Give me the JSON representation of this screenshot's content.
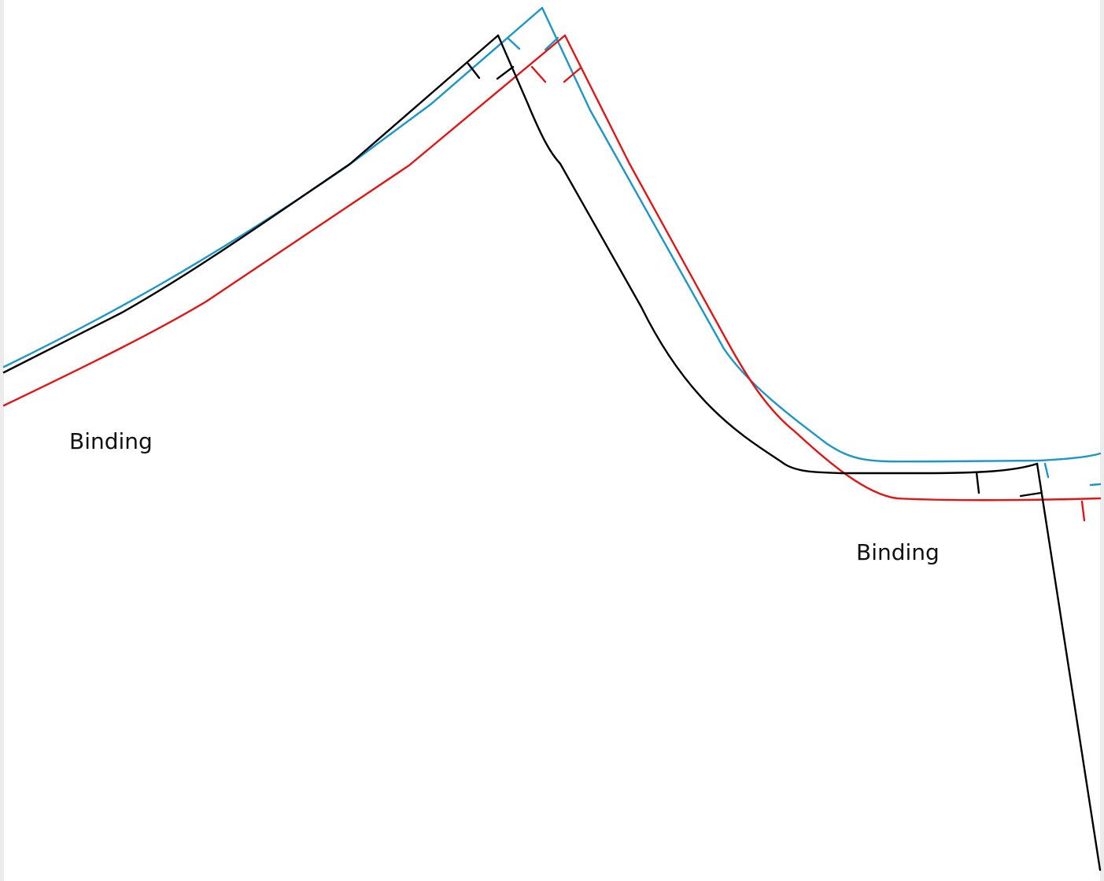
{
  "labels": {
    "binding_left": "Binding",
    "binding_right": "Binding"
  },
  "colors": {
    "black_line": "#000000",
    "blue_line": "#1a96c8",
    "red_line": "#e41414",
    "background": "#ffffff",
    "frame": "#ececec"
  },
  "legend": []
}
